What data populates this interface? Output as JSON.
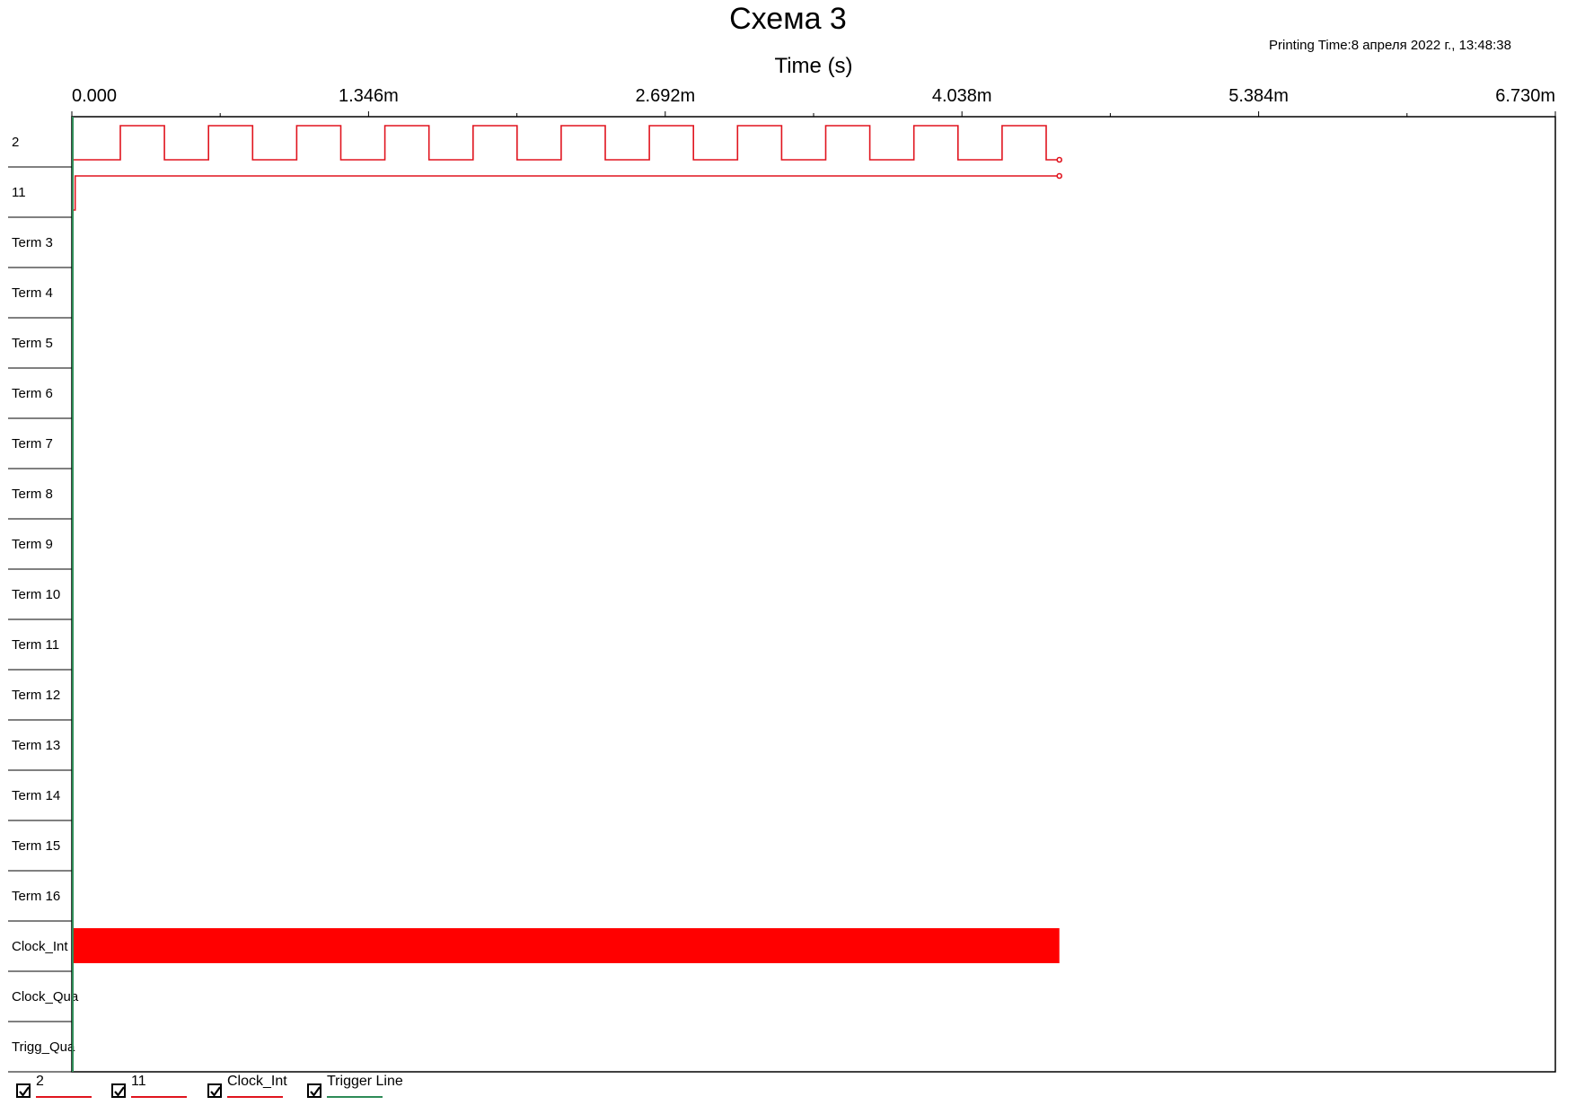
{
  "title": "Схема 3",
  "printing_time": "Printing Time:8 апреля 2022 г., 13:48:38",
  "colors": {
    "signal": "#e0141e",
    "clock_fill": "#ff0000",
    "trigger_line": "#2e8b57",
    "axis": "#000000"
  },
  "chart_data": {
    "type": "timing",
    "xlabel": "Time (s)",
    "x_range": [
      0,
      0.00673
    ],
    "x_ticks": [
      {
        "value": 0,
        "label": "0.000"
      },
      {
        "value": 0.001346,
        "label": "1.346m"
      },
      {
        "value": 0.002692,
        "label": "2.692m"
      },
      {
        "value": 0.004038,
        "label": "4.038m"
      },
      {
        "value": 0.005384,
        "label": "5.384m"
      },
      {
        "value": 0.00673,
        "label": "6.730m"
      }
    ],
    "x_minor_ticks": [
      0.000673,
      0.002019,
      0.003365,
      0.004711,
      0.006057
    ],
    "trigger_time": 0,
    "end_time": 0.00448,
    "rows": [
      "2",
      "11",
      "Term 3",
      "Term 4",
      "Term 5",
      "Term 6",
      "Term 7",
      "Term 8",
      "Term 9",
      "Term 10",
      "Term 11",
      "Term 12",
      "Term 13",
      "Term 14",
      "Term 15",
      "Term 16",
      "Clock_Int",
      "Clock_Qua",
      "Trigg_Qua"
    ],
    "signals": [
      {
        "row": "2",
        "points": [
          [
            0,
            0
          ],
          [
            0.00022,
            0
          ],
          [
            0.00022,
            1
          ],
          [
            0.00042,
            1
          ],
          [
            0.00042,
            0
          ],
          [
            0.00062,
            0
          ],
          [
            0.00062,
            1
          ],
          [
            0.00082,
            1
          ],
          [
            0.00082,
            0
          ],
          [
            0.00102,
            0
          ],
          [
            0.00102,
            1
          ],
          [
            0.00122,
            1
          ],
          [
            0.00122,
            0
          ],
          [
            0.00142,
            0
          ],
          [
            0.00142,
            1
          ],
          [
            0.00162,
            1
          ],
          [
            0.00162,
            0
          ],
          [
            0.00182,
            0
          ],
          [
            0.00182,
            1
          ],
          [
            0.00202,
            1
          ],
          [
            0.00202,
            0
          ],
          [
            0.00222,
            0
          ],
          [
            0.00222,
            1
          ],
          [
            0.00242,
            1
          ],
          [
            0.00242,
            0
          ],
          [
            0.00262,
            0
          ],
          [
            0.00262,
            1
          ],
          [
            0.00282,
            1
          ],
          [
            0.00282,
            0
          ],
          [
            0.00302,
            0
          ],
          [
            0.00302,
            1
          ],
          [
            0.00322,
            1
          ],
          [
            0.00322,
            0
          ],
          [
            0.00342,
            0
          ],
          [
            0.00342,
            1
          ],
          [
            0.00362,
            1
          ],
          [
            0.00362,
            0
          ],
          [
            0.00382,
            0
          ],
          [
            0.00382,
            1
          ],
          [
            0.00402,
            1
          ],
          [
            0.00402,
            0
          ],
          [
            0.00422,
            0
          ],
          [
            0.00422,
            1
          ],
          [
            0.00442,
            1
          ],
          [
            0.00442,
            0
          ],
          [
            0.00448,
            0
          ]
        ]
      },
      {
        "row": "11",
        "points": [
          [
            0,
            0
          ],
          [
            1.5e-05,
            0
          ],
          [
            1.5e-05,
            1
          ],
          [
            0.00448,
            1
          ]
        ]
      }
    ],
    "clock": {
      "row": "Clock_Int",
      "start": 0,
      "end": 0.00448
    }
  },
  "legend": [
    {
      "label": "2",
      "checked": true,
      "color": "#e0141e"
    },
    {
      "label": "11",
      "checked": true,
      "color": "#e0141e"
    },
    {
      "label": "Clock_Int",
      "checked": true,
      "color": "#e0141e"
    },
    {
      "label": "Trigger Line",
      "checked": true,
      "color": "#2e8b57"
    }
  ]
}
